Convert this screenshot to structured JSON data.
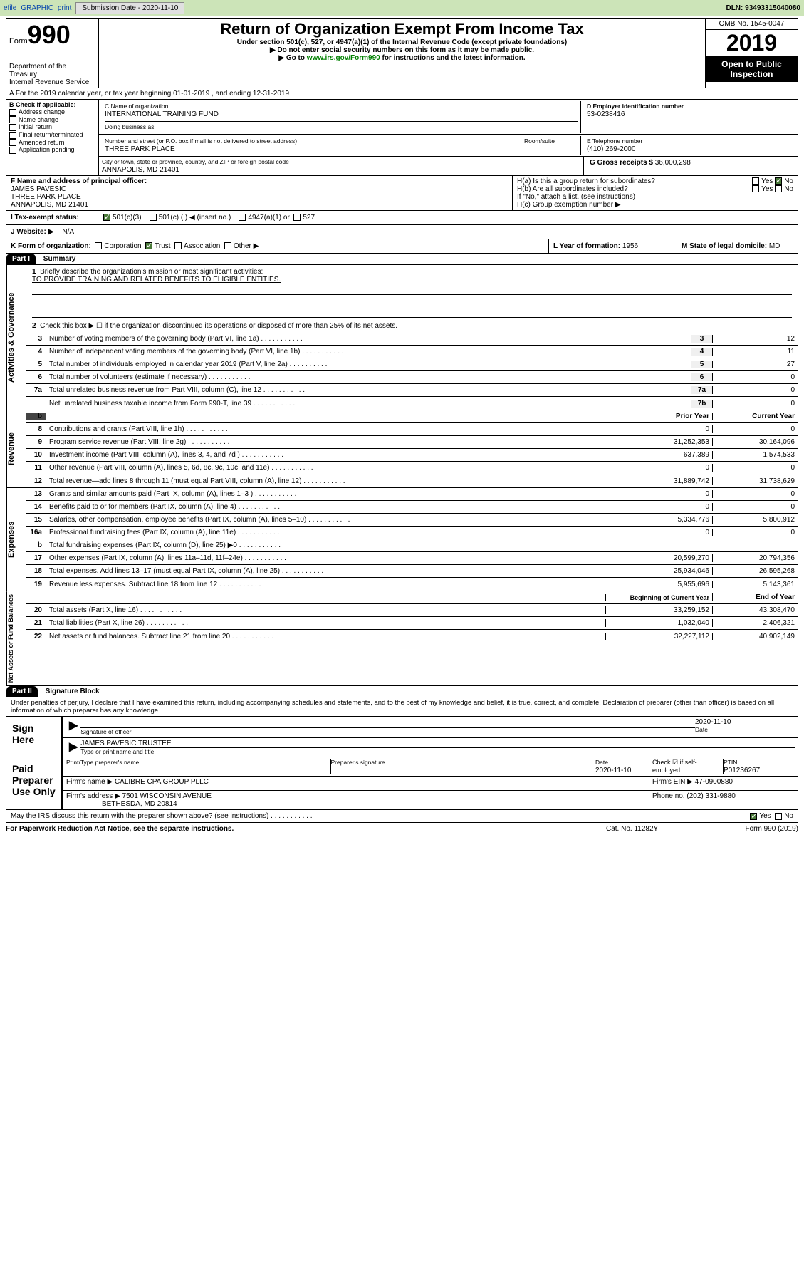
{
  "topbar": {
    "efile": "efile",
    "graphic": "GRAPHIC",
    "print": "print",
    "sub_label": "Submission Date - 2020-11-10",
    "dln": "DLN: 93493315040080"
  },
  "header": {
    "form_word": "Form",
    "form_num": "990",
    "dept1": "Department of the Treasury",
    "dept2": "Internal Revenue Service",
    "title": "Return of Organization Exempt From Income Tax",
    "sub1": "Under section 501(c), 527, or 4947(a)(1) of the Internal Revenue Code (except private foundations)",
    "sub2": "▶ Do not enter social security numbers on this form as it may be made public.",
    "sub3_pre": "▶ Go to ",
    "sub3_link": "www.irs.gov/Form990",
    "sub3_post": " for instructions and the latest information.",
    "omb": "OMB No. 1545-0047",
    "year": "2019",
    "open": "Open to Public Inspection"
  },
  "rowA": "A For the 2019 calendar year, or tax year beginning 01-01-2019     , and ending 12-31-2019",
  "boxB": {
    "label": "B Check if applicable:",
    "opts": [
      "Address change",
      "Name change",
      "Initial return",
      "Final return/terminated",
      "Amended return",
      "Application pending"
    ]
  },
  "boxC": {
    "label": "C Name of organization",
    "name": "INTERNATIONAL TRAINING FUND",
    "dba_label": "Doing business as",
    "addr_label": "Number and street (or P.O. box if mail is not delivered to street address)",
    "room_label": "Room/suite",
    "addr": "THREE PARK PLACE",
    "city_label": "City or town, state or province, country, and ZIP or foreign postal code",
    "city": "ANNAPOLIS, MD  21401"
  },
  "boxD": {
    "label": "D Employer identification number",
    "val": "53-0238416"
  },
  "boxE": {
    "label": "E Telephone number",
    "val": "(410) 269-2000"
  },
  "boxG": {
    "label": "G Gross receipts $",
    "val": "36,000,298"
  },
  "boxF": {
    "label": "F Name and address of principal officer:",
    "name": "JAMES PAVESIC",
    "addr1": "THREE PARK PLACE",
    "addr2": "ANNAPOLIS, MD  21401"
  },
  "boxH": {
    "a": "H(a)  Is this a group return for subordinates?",
    "b": "H(b)  Are all subordinates included?",
    "b_note": "If \"No,\" attach a list. (see instructions)",
    "c": "H(c)  Group exemption number ▶",
    "yes": "Yes",
    "no": "No"
  },
  "rowI": {
    "label": "I  Tax-exempt status:",
    "o1": "501(c)(3)",
    "o2": "501(c) (  ) ◀ (insert no.)",
    "o3": "4947(a)(1) or",
    "o4": "527"
  },
  "rowJ": {
    "label": "J  Website: ▶",
    "val": "N/A"
  },
  "rowK": {
    "label": "K Form of organization:",
    "o1": "Corporation",
    "o2": "Trust",
    "o3": "Association",
    "o4": "Other ▶"
  },
  "rowL": {
    "label": "L Year of formation:",
    "val": "1956"
  },
  "rowM": {
    "label": "M State of legal domicile:",
    "val": "MD"
  },
  "part1": {
    "hdr": "Part I",
    "title": "Summary",
    "sec1_label": "Activities & Governance",
    "l1": "Briefly describe the organization's mission or most significant activities:",
    "l1_text": "TO PROVIDE TRAINING AND RELATED BENEFITS TO ELIGIBLE ENTITIES.",
    "l2": "Check this box ▶ ☐  if the organization discontinued its operations or disposed of more than 25% of its net assets.",
    "lines_gov": [
      {
        "n": "3",
        "d": "Number of voting members of the governing body (Part VI, line 1a)",
        "b": "3",
        "v": "12"
      },
      {
        "n": "4",
        "d": "Number of independent voting members of the governing body (Part VI, line 1b)",
        "b": "4",
        "v": "11"
      },
      {
        "n": "5",
        "d": "Total number of individuals employed in calendar year 2019 (Part V, line 2a)",
        "b": "5",
        "v": "27"
      },
      {
        "n": "6",
        "d": "Total number of volunteers (estimate if necessary)",
        "b": "6",
        "v": "0"
      },
      {
        "n": "7a",
        "d": "Total unrelated business revenue from Part VIII, column (C), line 12",
        "b": "7a",
        "v": "0"
      },
      {
        "n": "",
        "d": "Net unrelated business taxable income from Form 990-T, line 39",
        "b": "7b",
        "v": "0"
      }
    ],
    "sec2_label": "Revenue",
    "col_prior": "Prior Year",
    "col_current": "Current Year",
    "lines_rev": [
      {
        "n": "8",
        "d": "Contributions and grants (Part VIII, line 1h)",
        "p": "0",
        "c": "0"
      },
      {
        "n": "9",
        "d": "Program service revenue (Part VIII, line 2g)",
        "p": "31,252,353",
        "c": "30,164,096"
      },
      {
        "n": "10",
        "d": "Investment income (Part VIII, column (A), lines 3, 4, and 7d )",
        "p": "637,389",
        "c": "1,574,533"
      },
      {
        "n": "11",
        "d": "Other revenue (Part VIII, column (A), lines 5, 6d, 8c, 9c, 10c, and 11e)",
        "p": "0",
        "c": "0"
      },
      {
        "n": "12",
        "d": "Total revenue—add lines 8 through 11 (must equal Part VIII, column (A), line 12)",
        "p": "31,889,742",
        "c": "31,738,629"
      }
    ],
    "sec3_label": "Expenses",
    "lines_exp": [
      {
        "n": "13",
        "d": "Grants and similar amounts paid (Part IX, column (A), lines 1–3 )",
        "p": "0",
        "c": "0"
      },
      {
        "n": "14",
        "d": "Benefits paid to or for members (Part IX, column (A), line 4)",
        "p": "0",
        "c": "0"
      },
      {
        "n": "15",
        "d": "Salaries, other compensation, employee benefits (Part IX, column (A), lines 5–10)",
        "p": "5,334,776",
        "c": "5,800,912"
      },
      {
        "n": "16a",
        "d": "Professional fundraising fees (Part IX, column (A), line 11e)",
        "p": "0",
        "c": "0"
      },
      {
        "n": "b",
        "d": "Total fundraising expenses (Part IX, column (D), line 25) ▶0",
        "p": "",
        "c": ""
      },
      {
        "n": "17",
        "d": "Other expenses (Part IX, column (A), lines 11a–11d, 11f–24e)",
        "p": "20,599,270",
        "c": "20,794,356"
      },
      {
        "n": "18",
        "d": "Total expenses. Add lines 13–17 (must equal Part IX, column (A), line 25)",
        "p": "25,934,046",
        "c": "26,595,268"
      },
      {
        "n": "19",
        "d": "Revenue less expenses. Subtract line 18 from line 12",
        "p": "5,955,696",
        "c": "5,143,361"
      }
    ],
    "sec4_label": "Net Assets or Fund Balances",
    "col_begin": "Beginning of Current Year",
    "col_end": "End of Year",
    "lines_net": [
      {
        "n": "20",
        "d": "Total assets (Part X, line 16)",
        "p": "33,259,152",
        "c": "43,308,470"
      },
      {
        "n": "21",
        "d": "Total liabilities (Part X, line 26)",
        "p": "1,032,040",
        "c": "2,406,321"
      },
      {
        "n": "22",
        "d": "Net assets or fund balances. Subtract line 21 from line 20",
        "p": "32,227,112",
        "c": "40,902,149"
      }
    ]
  },
  "part2": {
    "hdr": "Part II",
    "title": "Signature Block",
    "perjury": "Under penalties of perjury, I declare that I have examined this return, including accompanying schedules and statements, and to the best of my knowledge and belief, it is true, correct, and complete. Declaration of preparer (other than officer) is based on all information of which preparer has any knowledge.",
    "sign_here": "Sign Here",
    "sig_officer": "Signature of officer",
    "sig_date": "2020-11-10",
    "date_label": "Date",
    "name_title": "JAMES PAVESIC  TRUSTEE",
    "name_label": "Type or print name and title",
    "paid": "Paid Preparer Use Only",
    "prep_name_label": "Print/Type preparer's name",
    "prep_sig_label": "Preparer's signature",
    "prep_date": "2020-11-10",
    "check_if": "Check ☑ if self-employed",
    "ptin_label": "PTIN",
    "ptin": "P01236267",
    "firm_name_label": "Firm's name     ▶",
    "firm_name": "CALIBRE CPA GROUP PLLC",
    "firm_ein_label": "Firm's EIN ▶",
    "firm_ein": "47-0900880",
    "firm_addr_label": "Firm's address ▶",
    "firm_addr1": "7501 WISCONSIN AVENUE",
    "firm_addr2": "BETHESDA, MD  20814",
    "phone_label": "Phone no.",
    "phone": "(202) 331-9880",
    "discuss": "May the IRS discuss this return with the preparer shown above? (see instructions)",
    "yes": "Yes",
    "no": "No"
  },
  "footer": {
    "left": "For Paperwork Reduction Act Notice, see the separate instructions.",
    "mid": "Cat. No. 11282Y",
    "right": "Form 990 (2019)"
  }
}
